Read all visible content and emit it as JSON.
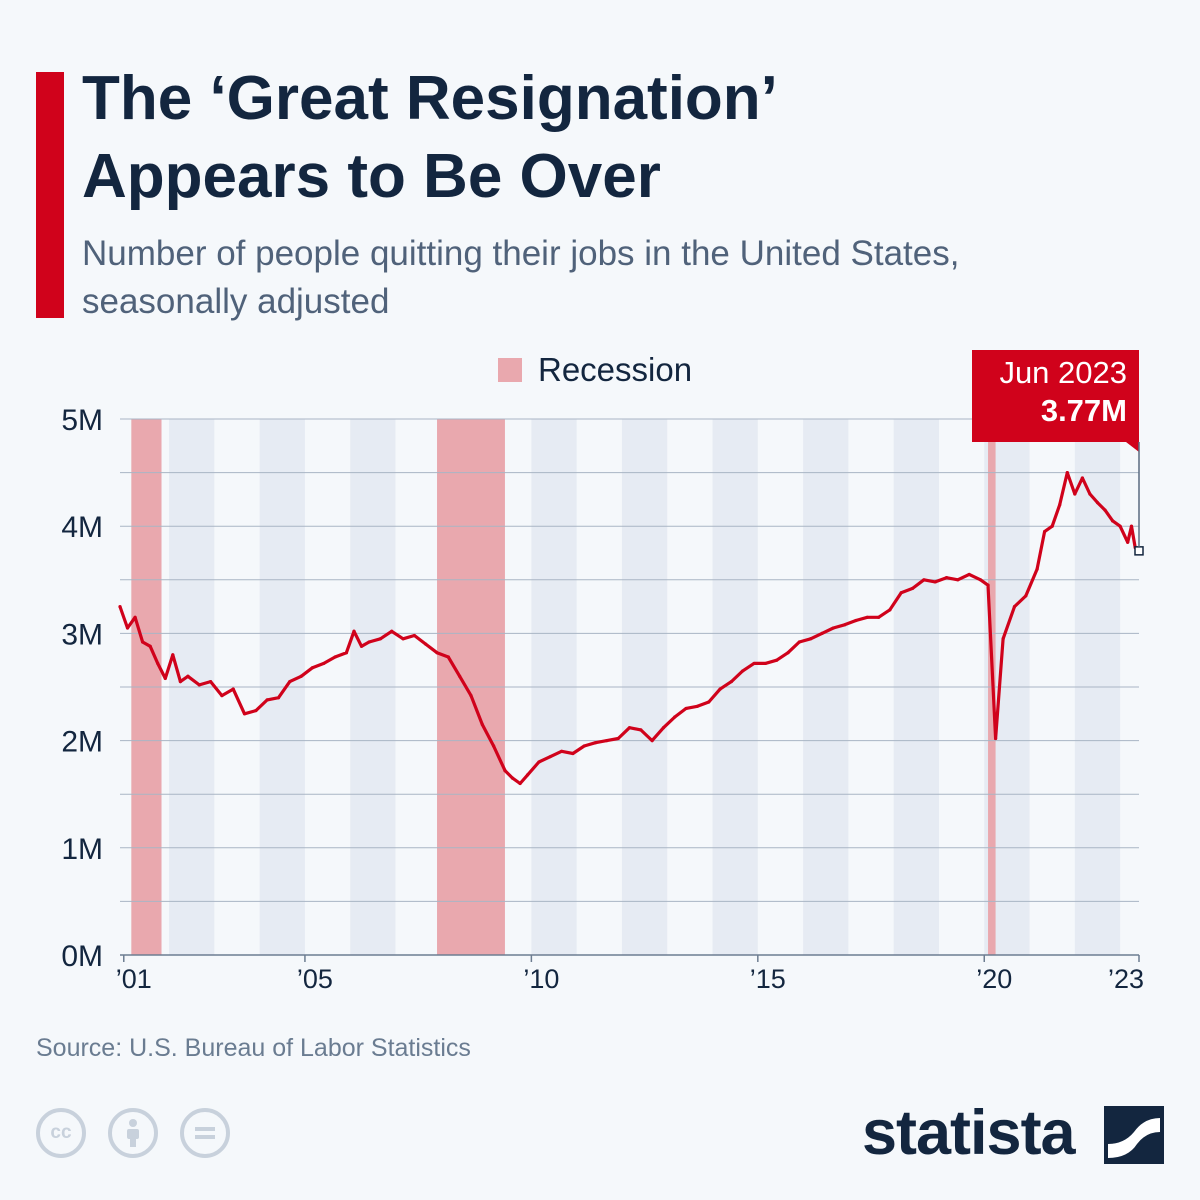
{
  "header": {
    "title_lines": [
      "The ‘Great Resignation’",
      "Appears to Be Over"
    ],
    "subtitle_lines": [
      "Number of people quitting their jobs in the United States,",
      "seasonally adjusted"
    ]
  },
  "colors": {
    "accent": "#d0021b",
    "line": "#d0021b",
    "recession": "#e9a8ae",
    "alt_band": "#e6ebf3",
    "plot_bg": "#f5f8fb",
    "title": "#13263f",
    "subtitle": "#50627a"
  },
  "legend": {
    "label": "Recession"
  },
  "callout": {
    "line1": "Jun 2023",
    "line2": "3.77M"
  },
  "footer": {
    "source": "Source: U.S. Bureau of Labor Statistics",
    "logo": "statista",
    "license_icons": [
      "creative-commons-icon",
      "attribution-icon",
      "no-derivatives-icon"
    ]
  },
  "chart_data": {
    "type": "line",
    "title": "The ‘Great Resignation’ Appears to Be Over",
    "ylim": [
      0,
      5
    ],
    "yticks": [
      0,
      1,
      2,
      3,
      4,
      5
    ],
    "ytick_labels": [
      "0M",
      "1M",
      "2M",
      "3M",
      "4M",
      "5M"
    ],
    "xlim": [
      "2000-12",
      "2023-06"
    ],
    "xticks": [
      {
        "date": "2001-01",
        "label": "’01"
      },
      {
        "date": "2005-01",
        "label": "’05"
      },
      {
        "date": "2010-01",
        "label": "’10"
      },
      {
        "date": "2015-01",
        "label": "’15"
      },
      {
        "date": "2020-01",
        "label": "’20"
      },
      {
        "date": "2023-06",
        "label": "’23"
      }
    ],
    "grid": true,
    "legend_position": "top-center",
    "recessions": [
      {
        "start": "2001-03",
        "end": "2001-11"
      },
      {
        "start": "2007-12",
        "end": "2009-06"
      },
      {
        "start": "2020-02",
        "end": "2020-04"
      }
    ],
    "series": [
      {
        "unit": "millions",
        "points": [
          [
            "2000-12",
            3.25
          ],
          [
            "2001-02",
            3.05
          ],
          [
            "2001-04",
            3.15
          ],
          [
            "2001-06",
            2.92
          ],
          [
            "2001-08",
            2.88
          ],
          [
            "2001-10",
            2.72
          ],
          [
            "2001-12",
            2.58
          ],
          [
            "2002-02",
            2.8
          ],
          [
            "2002-04",
            2.55
          ],
          [
            "2002-06",
            2.6
          ],
          [
            "2002-09",
            2.52
          ],
          [
            "2002-12",
            2.55
          ],
          [
            "2003-03",
            2.42
          ],
          [
            "2003-06",
            2.48
          ],
          [
            "2003-09",
            2.25
          ],
          [
            "2003-12",
            2.28
          ],
          [
            "2004-03",
            2.38
          ],
          [
            "2004-06",
            2.4
          ],
          [
            "2004-09",
            2.55
          ],
          [
            "2004-12",
            2.6
          ],
          [
            "2005-03",
            2.68
          ],
          [
            "2005-06",
            2.72
          ],
          [
            "2005-09",
            2.78
          ],
          [
            "2005-12",
            2.82
          ],
          [
            "2006-02",
            3.02
          ],
          [
            "2006-04",
            2.88
          ],
          [
            "2006-06",
            2.92
          ],
          [
            "2006-09",
            2.95
          ],
          [
            "2006-12",
            3.02
          ],
          [
            "2007-03",
            2.95
          ],
          [
            "2007-06",
            2.98
          ],
          [
            "2007-09",
            2.9
          ],
          [
            "2007-12",
            2.82
          ],
          [
            "2008-03",
            2.78
          ],
          [
            "2008-06",
            2.6
          ],
          [
            "2008-09",
            2.42
          ],
          [
            "2008-12",
            2.15
          ],
          [
            "2009-03",
            1.95
          ],
          [
            "2009-06",
            1.72
          ],
          [
            "2009-08",
            1.65
          ],
          [
            "2009-10",
            1.6
          ],
          [
            "2009-12",
            1.68
          ],
          [
            "2010-03",
            1.8
          ],
          [
            "2010-06",
            1.85
          ],
          [
            "2010-09",
            1.9
          ],
          [
            "2010-12",
            1.88
          ],
          [
            "2011-03",
            1.95
          ],
          [
            "2011-06",
            1.98
          ],
          [
            "2011-09",
            2.0
          ],
          [
            "2011-12",
            2.02
          ],
          [
            "2012-03",
            2.12
          ],
          [
            "2012-06",
            2.1
          ],
          [
            "2012-09",
            2.0
          ],
          [
            "2012-12",
            2.12
          ],
          [
            "2013-03",
            2.22
          ],
          [
            "2013-06",
            2.3
          ],
          [
            "2013-09",
            2.32
          ],
          [
            "2013-12",
            2.36
          ],
          [
            "2014-03",
            2.48
          ],
          [
            "2014-06",
            2.55
          ],
          [
            "2014-09",
            2.65
          ],
          [
            "2014-12",
            2.72
          ],
          [
            "2015-03",
            2.72
          ],
          [
            "2015-06",
            2.75
          ],
          [
            "2015-09",
            2.82
          ],
          [
            "2015-12",
            2.92
          ],
          [
            "2016-03",
            2.95
          ],
          [
            "2016-06",
            3.0
          ],
          [
            "2016-09",
            3.05
          ],
          [
            "2016-12",
            3.08
          ],
          [
            "2017-03",
            3.12
          ],
          [
            "2017-06",
            3.15
          ],
          [
            "2017-09",
            3.15
          ],
          [
            "2017-12",
            3.22
          ],
          [
            "2018-03",
            3.38
          ],
          [
            "2018-06",
            3.42
          ],
          [
            "2018-09",
            3.5
          ],
          [
            "2018-12",
            3.48
          ],
          [
            "2019-03",
            3.52
          ],
          [
            "2019-06",
            3.5
          ],
          [
            "2019-09",
            3.55
          ],
          [
            "2019-12",
            3.5
          ],
          [
            "2020-02",
            3.45
          ],
          [
            "2020-04",
            2.02
          ],
          [
            "2020-06",
            2.95
          ],
          [
            "2020-09",
            3.25
          ],
          [
            "2020-12",
            3.35
          ],
          [
            "2021-03",
            3.6
          ],
          [
            "2021-05",
            3.95
          ],
          [
            "2021-07",
            4.0
          ],
          [
            "2021-09",
            4.2
          ],
          [
            "2021-11",
            4.5
          ],
          [
            "2022-01",
            4.3
          ],
          [
            "2022-03",
            4.45
          ],
          [
            "2022-05",
            4.3
          ],
          [
            "2022-07",
            4.22
          ],
          [
            "2022-09",
            4.15
          ],
          [
            "2022-11",
            4.05
          ],
          [
            "2023-01",
            4.0
          ],
          [
            "2023-03",
            3.85
          ],
          [
            "2023-04",
            4.0
          ],
          [
            "2023-05",
            3.8
          ],
          [
            "2023-06",
            3.77
          ]
        ]
      }
    ]
  }
}
